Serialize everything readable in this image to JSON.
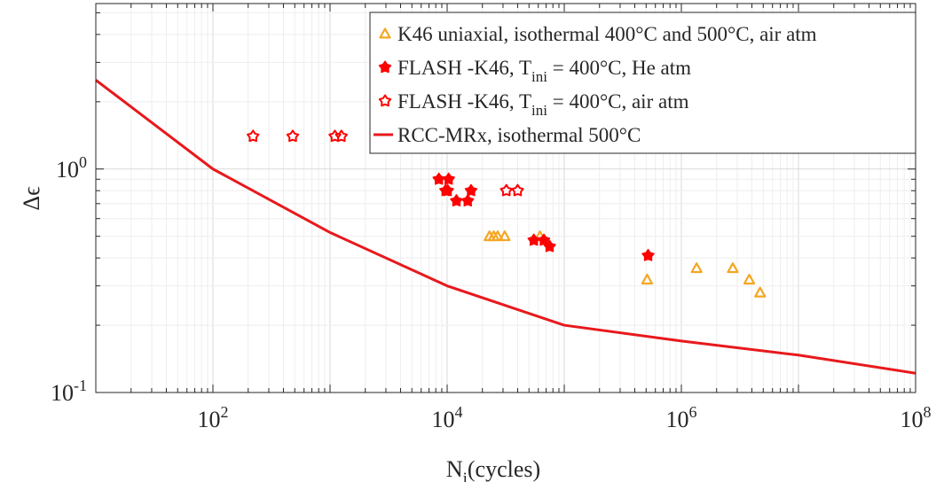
{
  "chart_data": {
    "type": "scatter",
    "xscale": "log",
    "yscale": "log",
    "xlim": [
      10,
      100000000
    ],
    "ylim": [
      0.1,
      5.5
    ],
    "xlabel": "N",
    "xlabel_sub": "i",
    "xlabel_rest": "(cycles)",
    "ylabel": "Δϵ",
    "xticks": [
      {
        "value": 100,
        "base": "10",
        "exp": "2"
      },
      {
        "value": 10000,
        "base": "10",
        "exp": "4"
      },
      {
        "value": 1000000,
        "base": "10",
        "exp": "6"
      },
      {
        "value": 100000000,
        "base": "10",
        "exp": "8"
      }
    ],
    "yticks": [
      {
        "value": 0.1,
        "base": "10",
        "exp": "-1"
      },
      {
        "value": 1,
        "base": "10",
        "exp": "0"
      }
    ],
    "grid": true,
    "legend_position": "top-right",
    "series": [
      {
        "name": "K46 uniaxial, isothermal 400°C and 500°C, air atm",
        "marker": "triangle",
        "color": "#F5A623",
        "points": [
          [
            23000,
            0.5
          ],
          [
            25000,
            0.5
          ],
          [
            27000,
            0.5
          ],
          [
            31000,
            0.5
          ],
          [
            62000,
            0.5
          ],
          [
            510000,
            0.32
          ],
          [
            1350000,
            0.36
          ],
          [
            2750000,
            0.36
          ],
          [
            3800000,
            0.32
          ],
          [
            4700000,
            0.28
          ]
        ]
      },
      {
        "name": "FLASH -K46, T",
        "name_sub": "ini",
        "name_rest": " = 400°C, He atm",
        "marker": "star-filled",
        "color": "#FF0000",
        "points": [
          [
            8500,
            0.9
          ],
          [
            9700,
            0.8
          ],
          [
            10100,
            0.8
          ],
          [
            10300,
            0.9
          ],
          [
            12000,
            0.72
          ],
          [
            15000,
            0.72
          ],
          [
            16000,
            0.8
          ],
          [
            55000,
            0.48
          ],
          [
            67000,
            0.48
          ],
          [
            75000,
            0.45
          ],
          [
            520000,
            0.41
          ]
        ]
      },
      {
        "name": "FLASH -K46, T",
        "name_sub": "ini",
        "name_rest": " = 400°C, air atm",
        "marker": "star-open",
        "color": "#FF0000",
        "points": [
          [
            220,
            1.4
          ],
          [
            480,
            1.4
          ],
          [
            1100,
            1.4
          ],
          [
            1250,
            1.4
          ],
          [
            32000,
            0.8
          ],
          [
            40000,
            0.8
          ]
        ]
      },
      {
        "name": "RCC-MRx, isothermal 500°C",
        "marker": "line",
        "color": "#E8191C",
        "points": [
          [
            10,
            2.5
          ],
          [
            100,
            1.0
          ],
          [
            1000,
            0.52
          ],
          [
            10000,
            0.3
          ],
          [
            100000,
            0.2
          ],
          [
            1000000,
            0.17
          ],
          [
            10000000,
            0.147
          ],
          [
            100000000,
            0.122
          ]
        ]
      }
    ]
  }
}
